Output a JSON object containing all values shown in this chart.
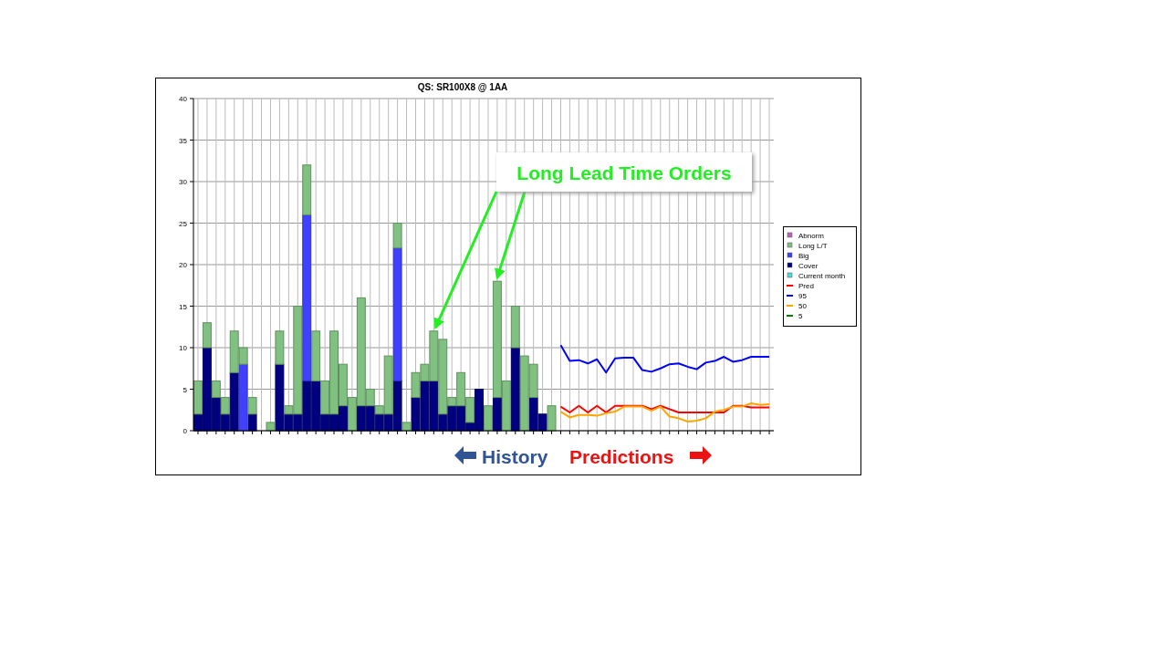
{
  "chart_data": {
    "type": "bar",
    "title": "QS: SR100X8 @ 1AA",
    "stacked": true,
    "categories": [
      null,
      null,
      null,
      null,
      null,
      null,
      null,
      null,
      null,
      null,
      null,
      null,
      null,
      null,
      null,
      null,
      null,
      null,
      null,
      null,
      null,
      null,
      null,
      null,
      null,
      null,
      null,
      null,
      null,
      null,
      null,
      null,
      null,
      null,
      null,
      null,
      null,
      null,
      null,
      null,
      null,
      null,
      null,
      null,
      null,
      null,
      null,
      null,
      null,
      null,
      null,
      null,
      null,
      null,
      null,
      null,
      null,
      null,
      null,
      null,
      null,
      null,
      null,
      null
    ],
    "ylim": [
      0,
      40
    ],
    "yticks": [
      0,
      5,
      10,
      15,
      20,
      25,
      30,
      35,
      40
    ],
    "grid": true,
    "legend": "right",
    "tick_labels": "y",
    "annotations": [
      "Long Lead Time Orders",
      "History",
      "Predictions"
    ],
    "series": [
      {
        "name": "Current month",
        "color": "#40e0e0",
        "values": [
          null,
          null,
          null,
          null,
          null,
          null,
          null,
          null,
          null,
          null,
          null,
          null,
          null,
          null,
          null,
          null,
          null,
          null,
          null,
          null,
          null,
          null,
          null,
          null,
          null,
          null,
          null,
          null,
          null,
          null,
          null,
          null,
          null,
          null,
          null,
          null,
          null,
          null,
          null,
          null,
          null,
          null,
          null,
          null,
          null,
          null,
          null,
          null,
          null,
          null,
          null,
          null,
          null,
          null,
          null,
          null,
          null,
          null,
          null,
          null,
          null,
          null,
          null,
          null
        ]
      },
      {
        "name": "Cover",
        "color": "#000080",
        "values": [
          2,
          10,
          4,
          2,
          7,
          null,
          2,
          null,
          null,
          8,
          2,
          2,
          6,
          6,
          2,
          2,
          3,
          null,
          3,
          3,
          2,
          2,
          6,
          null,
          4,
          6,
          6,
          2,
          3,
          3,
          1,
          5,
          null,
          4,
          null,
          10,
          null,
          4,
          2,
          null,
          null,
          null,
          null,
          null,
          null,
          null,
          null,
          null,
          null,
          null,
          null,
          null,
          null,
          null,
          null,
          null,
          null,
          null,
          null,
          null,
          null,
          null,
          null,
          null
        ]
      },
      {
        "name": "Big",
        "color": "#4040ff",
        "values": [
          null,
          null,
          null,
          null,
          null,
          8,
          null,
          null,
          null,
          null,
          null,
          null,
          20,
          null,
          null,
          null,
          null,
          null,
          null,
          null,
          null,
          null,
          16,
          null,
          null,
          null,
          null,
          null,
          null,
          null,
          null,
          null,
          null,
          null,
          null,
          null,
          null,
          null,
          null,
          null,
          null,
          null,
          null,
          null,
          null,
          null,
          null,
          null,
          null,
          null,
          null,
          null,
          null,
          null,
          null,
          null,
          null,
          null,
          null,
          null,
          null,
          null,
          null,
          null
        ]
      },
      {
        "name": "Long L/T",
        "color": "#80c080",
        "values": [
          4,
          3,
          2,
          2,
          5,
          2,
          2,
          null,
          1,
          4,
          1,
          13,
          6,
          6,
          4,
          10,
          5,
          4,
          13,
          2,
          1,
          7,
          3,
          1,
          3,
          2,
          6,
          9,
          1,
          4,
          3,
          null,
          3,
          14,
          6,
          5,
          9,
          4,
          null,
          3,
          null,
          null,
          null,
          null,
          null,
          null,
          null,
          null,
          null,
          null,
          null,
          null,
          null,
          null,
          null,
          null,
          null,
          null,
          null,
          null,
          null,
          null,
          null,
          null
        ]
      },
      {
        "name": "Abnorm",
        "color": "#c060c0",
        "values": [
          null,
          null,
          null,
          null,
          null,
          null,
          null,
          null,
          null,
          null,
          null,
          null,
          null,
          null,
          null,
          null,
          null,
          null,
          null,
          null,
          null,
          null,
          null,
          null,
          null,
          null,
          null,
          null,
          null,
          null,
          null,
          null,
          null,
          null,
          null,
          null,
          null,
          null,
          null,
          null,
          null,
          null,
          null,
          null,
          null,
          null,
          null,
          null,
          null,
          null,
          null,
          null,
          null,
          null,
          null,
          null,
          null,
          null,
          null,
          null,
          null,
          null,
          null,
          null
        ]
      },
      {
        "name": "Pred",
        "type": "line",
        "color": "#ff0000",
        "values": [
          null,
          null,
          null,
          null,
          null,
          null,
          null,
          null,
          null,
          null,
          null,
          null,
          null,
          null,
          null,
          null,
          null,
          null,
          null,
          null,
          null,
          null,
          null,
          null,
          null,
          null,
          null,
          null,
          null,
          null,
          null,
          null,
          null,
          null,
          null,
          null,
          null,
          null,
          null,
          null,
          2.9,
          2.2,
          3.0,
          2.2,
          3.0,
          2.2,
          3.0,
          3.0,
          3.0,
          3.0,
          2.6,
          3.0,
          2.6,
          2.2,
          2.2,
          2.2,
          2.2,
          2.2,
          2.2,
          3.0,
          3.0,
          2.8,
          2.8,
          2.8
        ]
      },
      {
        "name": "95",
        "type": "line",
        "color": "#0000ff",
        "values": [
          null,
          null,
          null,
          null,
          null,
          null,
          null,
          null,
          null,
          null,
          null,
          null,
          null,
          null,
          null,
          null,
          null,
          null,
          null,
          null,
          null,
          null,
          null,
          null,
          null,
          null,
          null,
          null,
          null,
          null,
          null,
          null,
          null,
          null,
          null,
          null,
          null,
          null,
          null,
          null,
          10.3,
          8.4,
          8.5,
          8.1,
          8.6,
          7.0,
          8.7,
          8.8,
          8.8,
          7.3,
          7.1,
          7.5,
          8.0,
          8.1,
          7.7,
          7.4,
          8.2,
          8.4,
          8.9,
          8.3,
          8.5,
          8.9,
          8.9,
          8.9
        ]
      },
      {
        "name": "50",
        "type": "line",
        "color": "#ffa500",
        "values": [
          null,
          null,
          null,
          null,
          null,
          null,
          null,
          null,
          null,
          null,
          null,
          null,
          null,
          null,
          null,
          null,
          null,
          null,
          null,
          null,
          null,
          null,
          null,
          null,
          null,
          null,
          null,
          null,
          null,
          null,
          null,
          null,
          null,
          null,
          null,
          null,
          null,
          null,
          null,
          null,
          2.3,
          1.6,
          1.9,
          1.9,
          1.8,
          2.1,
          2.3,
          2.9,
          2.9,
          2.9,
          2.4,
          2.9,
          1.7,
          1.5,
          1.1,
          1.2,
          1.5,
          2.3,
          2.5,
          2.9,
          2.9,
          3.3,
          3.1,
          3.2
        ]
      },
      {
        "name": "5",
        "type": "line",
        "color": "#008000",
        "values": [
          null,
          null,
          null,
          null,
          null,
          null,
          null,
          null,
          null,
          null,
          null,
          null,
          null,
          null,
          null,
          null,
          null,
          null,
          null,
          null,
          null,
          null,
          null,
          null,
          null,
          null,
          null,
          null,
          null,
          null,
          null,
          null,
          null,
          null,
          null,
          null,
          null,
          null,
          null,
          null,
          null,
          null,
          null,
          null,
          null,
          null,
          null,
          null,
          null,
          null,
          null,
          null,
          null,
          null,
          null,
          null,
          null,
          null,
          null,
          null,
          null,
          null,
          null,
          null
        ]
      }
    ]
  }
}
